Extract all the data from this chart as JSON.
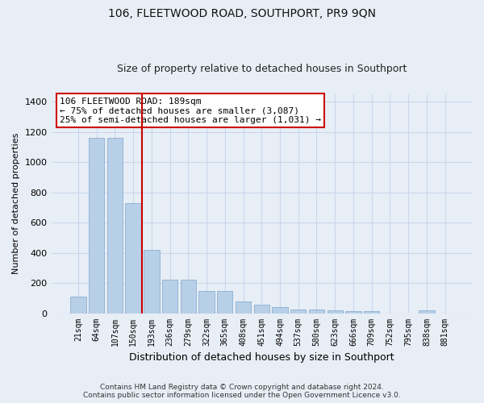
{
  "title": "106, FLEETWOOD ROAD, SOUTHPORT, PR9 9QN",
  "subtitle": "Size of property relative to detached houses in Southport",
  "xlabel": "Distribution of detached houses by size in Southport",
  "ylabel": "Number of detached properties",
  "footer_line1": "Contains HM Land Registry data © Crown copyright and database right 2024.",
  "footer_line2": "Contains public sector information licensed under the Open Government Licence v3.0.",
  "categories": [
    "21sqm",
    "64sqm",
    "107sqm",
    "150sqm",
    "193sqm",
    "236sqm",
    "279sqm",
    "322sqm",
    "365sqm",
    "408sqm",
    "451sqm",
    "494sqm",
    "537sqm",
    "580sqm",
    "623sqm",
    "666sqm",
    "709sqm",
    "752sqm",
    "795sqm",
    "838sqm",
    "881sqm"
  ],
  "values": [
    108,
    1160,
    1160,
    730,
    420,
    220,
    220,
    148,
    148,
    75,
    55,
    42,
    25,
    22,
    20,
    15,
    15,
    0,
    0,
    18,
    0
  ],
  "bar_color": "#b8cfe8",
  "bar_edge_color": "#8ab0d0",
  "grid_color": "#c8d8ec",
  "vline_color": "#cc0000",
  "annotation_text": "106 FLEETWOOD ROAD: 189sqm\n← 75% of detached houses are smaller (3,087)\n25% of semi-detached houses are larger (1,031) →",
  "annotation_box_facecolor": "#ffffff",
  "annotation_box_edgecolor": "#cc0000",
  "ylim": [
    0,
    1450
  ],
  "yticks": [
    0,
    200,
    400,
    600,
    800,
    1000,
    1200,
    1400
  ],
  "bg_color": "#e8eef6",
  "plot_bg_color": "#e8eef6",
  "title_fontsize": 10,
  "subtitle_fontsize": 9,
  "xlabel_fontsize": 9,
  "ylabel_fontsize": 8,
  "tick_fontsize": 8,
  "xtick_fontsize": 7,
  "annot_fontsize": 8,
  "footer_fontsize": 6.5
}
